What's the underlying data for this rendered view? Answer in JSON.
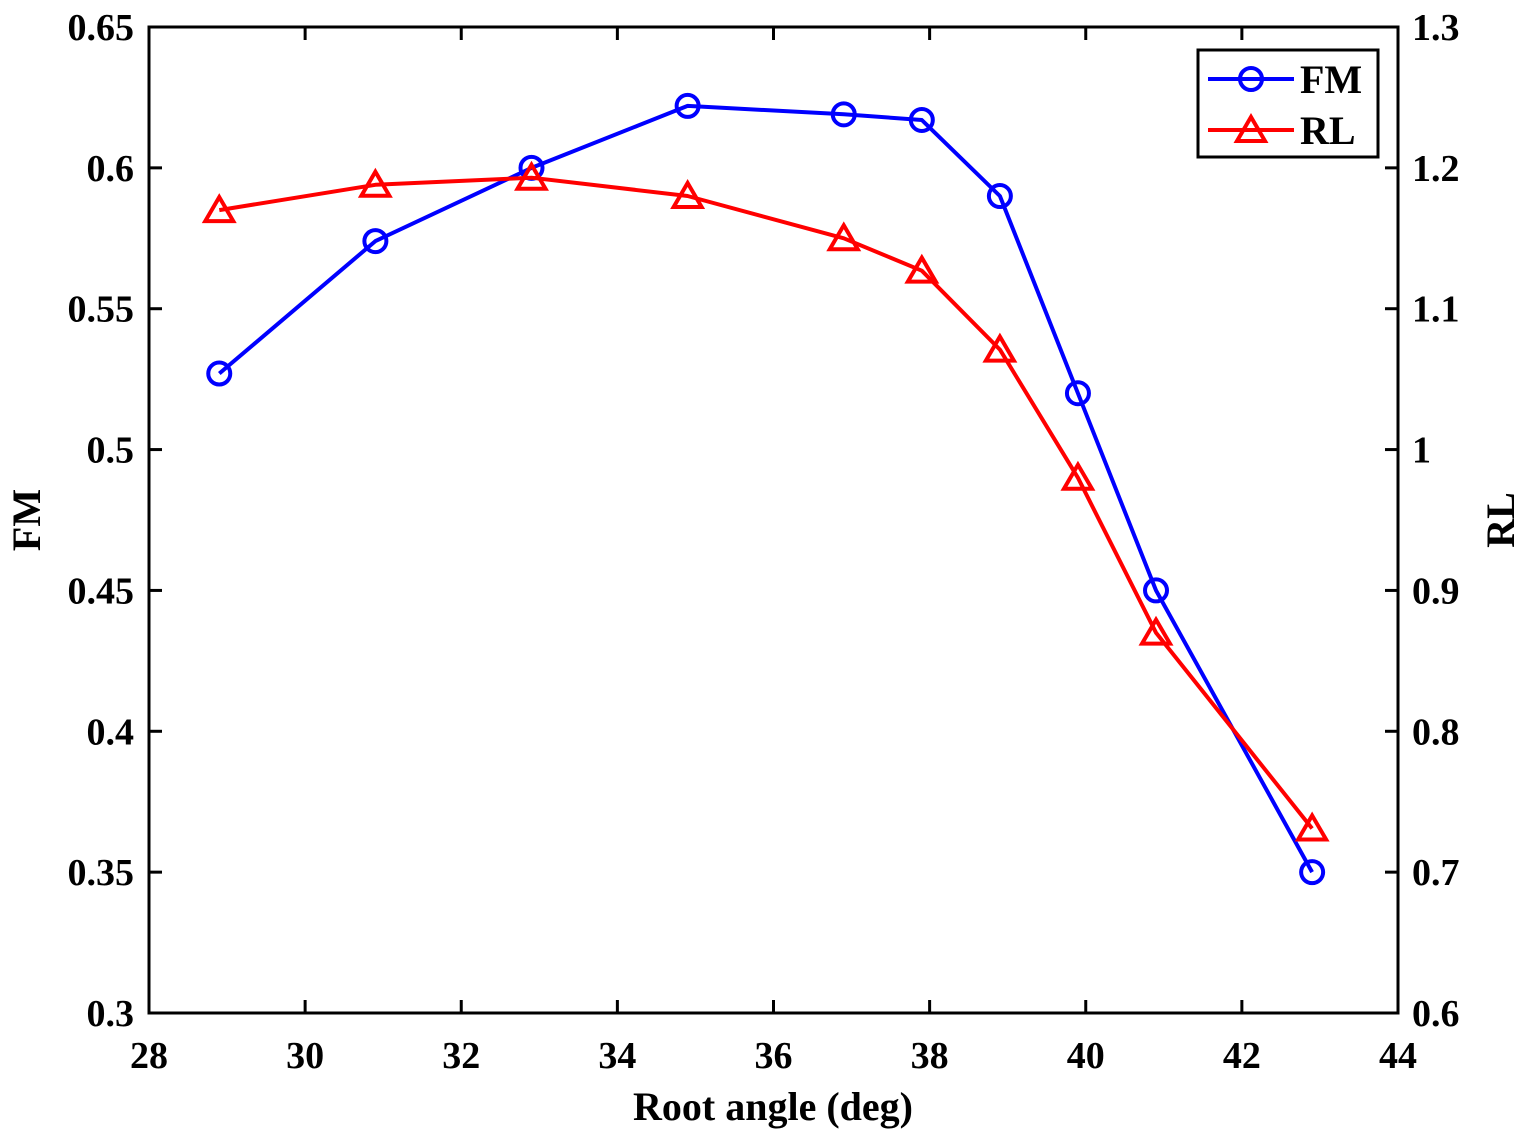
{
  "chart_data": {
    "type": "line",
    "xlabel": "Root angle (deg)",
    "ylabel_left": "FM",
    "ylabel_right": "RL",
    "xlim": [
      28,
      44
    ],
    "ylim_left": [
      0.3,
      0.65
    ],
    "ylim_right": [
      0.6,
      1.3
    ],
    "x_ticks": [
      28,
      30,
      32,
      34,
      36,
      38,
      40,
      42,
      44
    ],
    "x_tick_labels": [
      "28",
      "30",
      "32",
      "34",
      "36",
      "38",
      "40",
      "42",
      "44"
    ],
    "y_left_ticks": [
      0.3,
      0.35,
      0.4,
      0.45,
      0.5,
      0.55,
      0.6,
      0.65
    ],
    "y_left_tick_labels": [
      "0.3",
      "0.35",
      "0.4",
      "0.45",
      "0.5",
      "0.55",
      "0.6",
      "0.65"
    ],
    "y_right_ticks": [
      0.6,
      0.7,
      0.8,
      0.9,
      1.0,
      1.1,
      1.2,
      1.3
    ],
    "y_right_tick_labels": [
      "0.6",
      "0.7",
      "0.8",
      "0.9",
      "1",
      "1.1",
      "1.2",
      "1.3"
    ],
    "grid": false,
    "legend_position": "top-right",
    "series": [
      {
        "name": "FM",
        "axis": "left",
        "color": "#0000ff",
        "marker": "circle",
        "x": [
          28.9,
          30.9,
          32.9,
          34.9,
          36.9,
          37.9,
          38.9,
          39.9,
          40.9,
          42.9
        ],
        "values": [
          0.527,
          0.574,
          0.6,
          0.622,
          0.619,
          0.617,
          0.59,
          0.52,
          0.45,
          0.35
        ]
      },
      {
        "name": "RL",
        "axis": "right",
        "color": "#ff0000",
        "marker": "triangle",
        "x": [
          28.9,
          30.9,
          32.9,
          34.9,
          36.9,
          37.9,
          38.9,
          39.9,
          40.9,
          42.9
        ],
        "values": [
          1.17,
          1.188,
          1.193,
          1.18,
          1.15,
          1.127,
          1.071,
          0.98,
          0.87,
          0.731
        ]
      }
    ]
  }
}
